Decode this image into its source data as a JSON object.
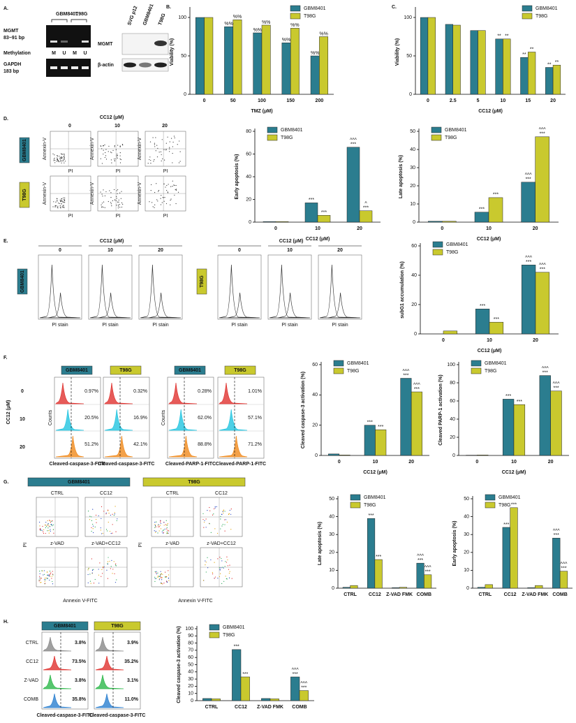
{
  "chart_data": [
    {
      "type": "bar",
      "panel": "B.",
      "ylabel": "Viability (%)",
      "xlabel": "TMZ (μM)",
      "categories": [
        "0",
        "50",
        "100",
        "150",
        "200"
      ],
      "ylim": [
        0,
        110
      ],
      "yticks": [
        0,
        50,
        100
      ],
      "legend": "upper right",
      "series": [
        {
          "name": "GBM8401",
          "color": "#2b7d8f",
          "values": [
            100,
            88,
            80,
            67,
            50
          ],
          "annotations": [
            null,
            [
              "%%"
            ],
            [
              "%%"
            ],
            [
              "%%"
            ],
            [
              "%%"
            ]
          ]
        },
        {
          "name": "T98G",
          "color": "#c9c92e",
          "values": [
            100,
            97,
            90,
            86,
            75
          ],
          "annotations": [
            null,
            [
              "%%"
            ],
            [
              "%%"
            ],
            [
              "%%"
            ],
            [
              "%%"
            ]
          ]
        }
      ]
    },
    {
      "type": "bar",
      "panel": "C.",
      "ylabel": "Viability (%)",
      "xlabel": "CC12 (μM)",
      "categories": [
        "0",
        "2.5",
        "5",
        "10",
        "15",
        "20"
      ],
      "ylim": [
        0,
        110
      ],
      "yticks": [
        0,
        50,
        100
      ],
      "legend": "upper right",
      "series": [
        {
          "name": "GBM8401",
          "color": "#2b7d8f",
          "values": [
            100,
            91,
            83,
            72,
            48,
            35
          ],
          "annotations": [
            null,
            null,
            null,
            [
              "**"
            ],
            [
              "**"
            ],
            [
              "**"
            ]
          ]
        },
        {
          "name": "T98G",
          "color": "#c9c92e",
          "values": [
            100,
            90,
            83,
            72,
            55,
            38
          ],
          "annotations": [
            null,
            null,
            null,
            [
              "**"
            ],
            [
              "**"
            ],
            [
              "**"
            ]
          ]
        }
      ]
    },
    {
      "type": "bar",
      "ylabel": "Early apoptosis (%)",
      "xlabel": "CC12 (μM)",
      "categories": [
        "0",
        "10",
        "20"
      ],
      "ylim": [
        0,
        80
      ],
      "yticks": [
        0,
        20,
        40,
        60,
        80
      ],
      "legend": "upper left",
      "series": [
        {
          "name": "GBM8401",
          "color": "#2b7d8f",
          "values": [
            0.5,
            17,
            66
          ],
          "annotations": [
            null,
            [
              "***"
            ],
            [
              "^^^",
              "***"
            ]
          ]
        },
        {
          "name": "T98G",
          "color": "#c9c92e",
          "values": [
            0.5,
            6,
            10
          ],
          "annotations": [
            null,
            [
              "***"
            ],
            [
              "^",
              "***"
            ]
          ]
        }
      ]
    },
    {
      "type": "bar",
      "ylabel": "Late apoptosis (%)",
      "xlabel": "CC12 (μM)",
      "categories": [
        "0",
        "10",
        "20"
      ],
      "ylim": [
        0,
        50
      ],
      "yticks": [
        0,
        10,
        20,
        30,
        40,
        50
      ],
      "legend": "upper left",
      "series": [
        {
          "name": "GBM8401",
          "color": "#2b7d8f",
          "values": [
            0.5,
            5.5,
            22
          ],
          "annotations": [
            null,
            [
              "***"
            ],
            [
              "^^^",
              "***"
            ]
          ]
        },
        {
          "name": "T98G",
          "color": "#c9c92e",
          "values": [
            0.5,
            13.5,
            47
          ],
          "annotations": [
            null,
            [
              "***"
            ],
            [
              "^^^",
              "***"
            ]
          ]
        }
      ]
    },
    {
      "type": "bar",
      "ylabel": "subG1 accumulation (%)",
      "xlabel": "CC12 (μM)",
      "categories": [
        "0",
        "10",
        "20"
      ],
      "ylim": [
        0,
        60
      ],
      "yticks": [
        0,
        20,
        40,
        60
      ],
      "legend": "upper left",
      "series": [
        {
          "name": "GBM8401",
          "color": "#2b7d8f",
          "values": [
            0,
            17,
            47
          ],
          "annotations": [
            null,
            [
              "***"
            ],
            [
              "^^^",
              "***"
            ]
          ]
        },
        {
          "name": "T98G",
          "color": "#c9c92e",
          "values": [
            2,
            8,
            42
          ],
          "annotations": [
            null,
            [
              "***"
            ],
            [
              "^^^",
              "***"
            ]
          ]
        }
      ]
    },
    {
      "type": "bar",
      "ylabel": "Cleaved caspase-3 activation (%)",
      "xlabel": "CC12 (μM)",
      "categories": [
        "0",
        "10",
        "20"
      ],
      "ylim": [
        0,
        60
      ],
      "yticks": [
        0,
        20,
        40,
        60
      ],
      "legend": "upper left",
      "series": [
        {
          "name": "GBM8401",
          "color": "#2b7d8f",
          "values": [
            1,
            20,
            51
          ],
          "annotations": [
            null,
            [
              "***"
            ],
            [
              "^^^",
              "***"
            ]
          ]
        },
        {
          "name": "T98G",
          "color": "#c9c92e",
          "values": [
            0.3,
            17,
            42
          ],
          "annotations": [
            null,
            [
              "***"
            ],
            [
              "^^^",
              "***"
            ]
          ]
        }
      ]
    },
    {
      "type": "bar",
      "ylabel": "Cleaved PARP-1 activation (%)",
      "xlabel": "CC12 (μM)",
      "categories": [
        "0",
        "10",
        "20"
      ],
      "ylim": [
        0,
        100
      ],
      "yticks": [
        0,
        20,
        40,
        60,
        80,
        100
      ],
      "legend": "upper left",
      "series": [
        {
          "name": "GBM8401",
          "color": "#2b7d8f",
          "values": [
            0.3,
            62,
            88
          ],
          "annotations": [
            null,
            [
              "***"
            ],
            [
              "^^^",
              "***"
            ]
          ]
        },
        {
          "name": "T98G",
          "color": "#c9c92e",
          "values": [
            0.5,
            56,
            71
          ],
          "annotations": [
            null,
            [
              "***"
            ],
            [
              "^^^",
              "***"
            ]
          ]
        }
      ]
    },
    {
      "type": "bar",
      "ylabel": "Late apoptosis (%)",
      "categories": [
        "CTRL",
        "CC12",
        "Z-VAD FMK",
        "COMB"
      ],
      "ylim": [
        0,
        50
      ],
      "yticks": [
        0,
        10,
        20,
        30,
        40,
        50
      ],
      "legend": "upper left",
      "series": [
        {
          "name": "GBM8401",
          "color": "#2b7d8f",
          "values": [
            0.5,
            39,
            0.3,
            14
          ],
          "annotations": [
            null,
            [
              "***"
            ],
            null,
            [
              "^^^",
              "***"
            ]
          ]
        },
        {
          "name": "T98G",
          "color": "#c9c92e",
          "values": [
            1.5,
            16,
            0.5,
            7.5
          ],
          "annotations": [
            null,
            [
              "***"
            ],
            null,
            [
              "^^^",
              "***"
            ]
          ]
        }
      ]
    },
    {
      "type": "bar",
      "ylabel": "Early apoptosis (%)",
      "categories": [
        "CTRL",
        "CC12",
        "Z-VAD FMK",
        "COMB"
      ],
      "ylim": [
        0,
        50
      ],
      "yticks": [
        0,
        10,
        20,
        30,
        40,
        50
      ],
      "legend": "upper left",
      "series": [
        {
          "name": "GBM8401",
          "color": "#2b7d8f",
          "values": [
            0.5,
            34,
            0.3,
            28
          ],
          "annotations": [
            null,
            [
              "***"
            ],
            null,
            [
              "^^^",
              "***"
            ]
          ]
        },
        {
          "name": "T98G",
          "color": "#c9c92e",
          "values": [
            2,
            45,
            1.5,
            9.5
          ],
          "annotations": [
            null,
            [
              "***"
            ],
            null,
            [
              "^^^",
              "***"
            ]
          ]
        }
      ]
    },
    {
      "type": "bar",
      "ylabel": "Cleaved caspase-3 activation (%)",
      "categories": [
        "CTRL",
        "CC12",
        "Z-VAD FMK",
        "COMB"
      ],
      "ylim": [
        0,
        100
      ],
      "yticks": [
        0,
        10,
        20,
        30,
        40,
        50,
        60,
        70,
        80,
        90,
        100
      ],
      "legend": "upper left",
      "series": [
        {
          "name": "GBM8401",
          "color": "#2b7d8f",
          "values": [
            3,
            71,
            3,
            33
          ],
          "annotations": [
            null,
            [
              "***"
            ],
            null,
            [
              "^^^",
              "***"
            ]
          ]
        },
        {
          "name": "T98G",
          "color": "#c9c92e",
          "values": [
            2.5,
            33,
            2.5,
            14
          ],
          "annotations": [
            null,
            [
              "***"
            ],
            null,
            [
              "^^^",
              "***"
            ]
          ]
        }
      ]
    }
  ],
  "panel_a": {
    "label": "A.",
    "gel_cell_lines": [
      "GBM8401",
      "T98G"
    ],
    "mgmt_gel": "MGMT",
    "mgmt_size": "83~91 bp",
    "methylation": "Methylation",
    "lanes": [
      "M",
      "U",
      "M",
      "U"
    ],
    "gapdh_gel": "GAPDH",
    "gapdh_size": "183 bp",
    "blot_lanes": [
      "SVG p12",
      "GBM8401",
      "T98G"
    ],
    "blot_rows": [
      "MGMT",
      "β-actin"
    ]
  },
  "panel_d": {
    "label": "D.",
    "dose_title": "CC12 (μM)",
    "doses": [
      "0",
      "10",
      "20"
    ],
    "cell_lines": [
      "GBM8401",
      "T98G"
    ],
    "y_axis": "Annexin-V",
    "x_axis": "PI"
  },
  "panel_e": {
    "label": "E.",
    "dose_title": "CC12 (μM)",
    "doses": [
      "0",
      "10",
      "20"
    ],
    "cell_lines": [
      "GBM8401",
      "T98G"
    ],
    "x_axis": "PI stain"
  },
  "panel_f": {
    "label": "F.",
    "row_title": "CC12 (μM)",
    "doses": [
      "0",
      "10",
      "20"
    ],
    "y_axis": "Counts",
    "columns": [
      {
        "cell_line": "GBM8401",
        "x_axis": "Cleaved-caspase-3-FITC",
        "percents": [
          "0.97%",
          "20.5%",
          "51.2%"
        ]
      },
      {
        "cell_line": "T98G",
        "x_axis": "Cleaved-caspase-3-FITC",
        "percents": [
          "0.32%",
          "16.9%",
          "42.1%"
        ]
      },
      {
        "cell_line": "GBM8401",
        "x_axis": "Cleaved-PARP-1-FITC",
        "percents": [
          "0.28%",
          "62.0%",
          "88.8%"
        ]
      },
      {
        "cell_line": "T98G",
        "x_axis": "Cleaved-PARP-1-FITC",
        "percents": [
          "1.01%",
          "57.1%",
          "71.2%"
        ]
      }
    ]
  },
  "panel_g": {
    "label": "G.",
    "cell_lines": [
      "GBM8401",
      "T98G"
    ],
    "conditions": [
      "CTRL",
      "CC12",
      "z-VAD",
      "z-VAD+CC12"
    ],
    "x_axis": "Annexin V-FITC",
    "y_axis": "PI"
  },
  "panel_h": {
    "label": "H.",
    "cell_lines": [
      "GBM8401",
      "T98G"
    ],
    "conditions": [
      "CTRL",
      "CC12",
      "Z-VAD",
      "COMB"
    ],
    "percents": [
      [
        "3.8%",
        "73.5%",
        "3.8%",
        "35.8%"
      ],
      [
        "3.9%",
        "35.2%",
        "3.1%",
        "11.0%"
      ]
    ],
    "x_axis": "Cleaved-caspase-3-FITC"
  }
}
